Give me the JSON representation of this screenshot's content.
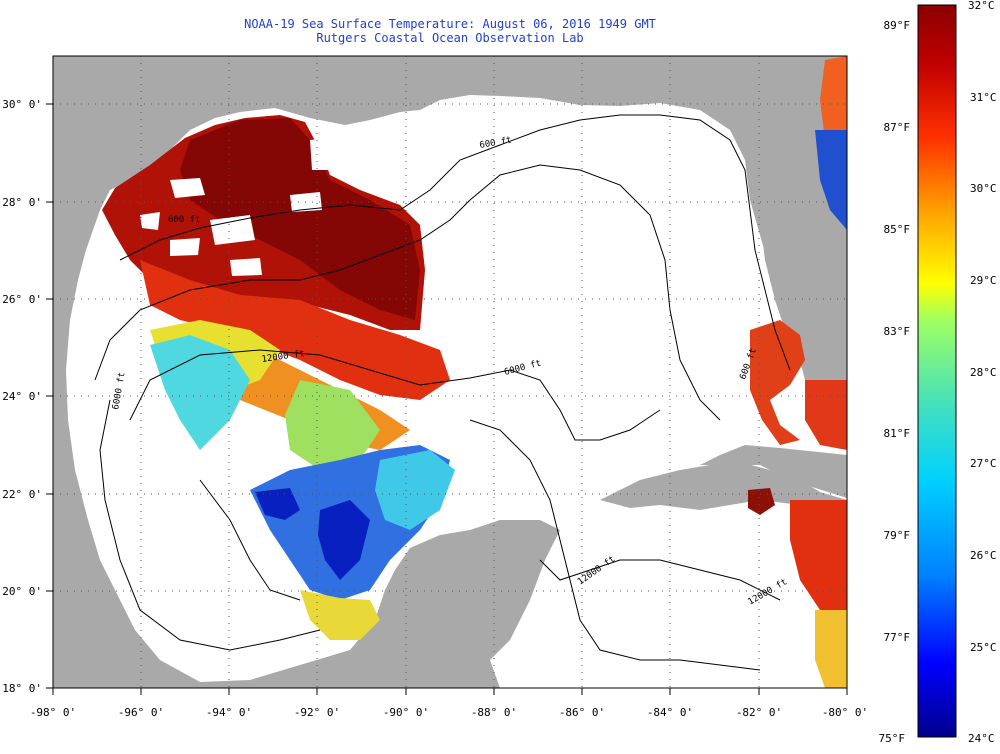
{
  "header": {
    "title_line1": "NOAA-19 Sea Surface Temperature:  August 06, 2016 1949 GMT",
    "title_line2": "Rutgers Coastal Ocean Observation Lab"
  },
  "map": {
    "lon_range": [
      -98,
      -80
    ],
    "lat_range": [
      18,
      31
    ],
    "lon_ticks": [
      "-98° 0'",
      "-96° 0'",
      "-94° 0'",
      "-92° 0'",
      "-90° 0'",
      "-88° 0'",
      "-86° 0'",
      "-84° 0'",
      "-82° 0'",
      "-80° 0'"
    ],
    "lat_ticks": [
      "18° 0'",
      "20° 0'",
      "22° 0'",
      "24° 0'",
      "26° 0'",
      "28° 0'",
      "30° 0'"
    ],
    "contour_labels": [
      "600 ft",
      "600 ft",
      "600 ft",
      "12000 ft",
      "6000 ft",
      "12000 ft",
      "12000 ft",
      "6000 ft"
    ],
    "colors": {
      "land": "#a9a9a9",
      "no_data": "#ffffff",
      "grid": "#555555"
    }
  },
  "colorbar": {
    "min_c": 24,
    "max_c": 32,
    "celsius_labels": [
      "32°C",
      "31°C",
      "30°C",
      "29°C",
      "28°C",
      "27°C",
      "26°C",
      "25°C",
      "24°C"
    ],
    "fahrenheit_labels": [
      "89°F",
      "87°F",
      "85°F",
      "83°F",
      "81°F",
      "79°F",
      "77°F",
      "75°F"
    ],
    "gradient": [
      "#00008b",
      "#0000ff",
      "#0080ff",
      "#00d0ff",
      "#40e0c0",
      "#a0ff60",
      "#ffff00",
      "#ffa000",
      "#ff3000",
      "#c00000",
      "#8b0000"
    ]
  }
}
